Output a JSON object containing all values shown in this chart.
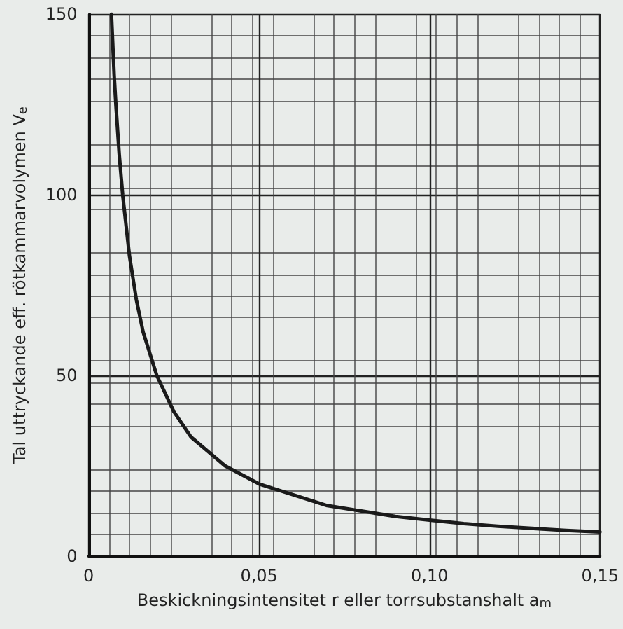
{
  "chart_data": {
    "type": "line",
    "xlabel": "Beskickningsintensitet r eller torrsubstanshalt a$_{m}$",
    "ylabel": "Tal uttryckande eff. rötkammarvolymen V$_{e}$",
    "x": [
      0.0067,
      0.0075,
      0.008,
      0.009,
      0.01,
      0.012,
      0.014,
      0.016,
      0.018,
      0.02,
      0.025,
      0.03,
      0.035,
      0.04,
      0.05,
      0.06,
      0.07,
      0.08,
      0.09,
      0.1,
      0.11,
      0.12,
      0.13,
      0.14,
      0.15
    ],
    "series": [
      {
        "color": "#1a1a1a",
        "values": [
          150,
          133,
          125,
          111,
          100,
          83,
          71,
          62,
          56,
          50,
          40,
          33,
          29,
          25,
          20,
          17,
          14,
          12.5,
          11,
          10,
          9,
          8.3,
          7.7,
          7.1,
          6.7
        ]
      }
    ],
    "xlim": [
      0,
      0.15
    ],
    "xticks": [
      0,
      {
        "value": 0.05,
        "label": "0,05"
      },
      {
        "value": 0.1,
        "label": "0,10"
      },
      {
        "value": 0.15,
        "label": "0,15"
      }
    ],
    "ylim": [
      0,
      150
    ],
    "yticks": [
      0,
      50,
      100,
      150
    ],
    "grid": true,
    "marker": "none",
    "line_style": "solid"
  }
}
